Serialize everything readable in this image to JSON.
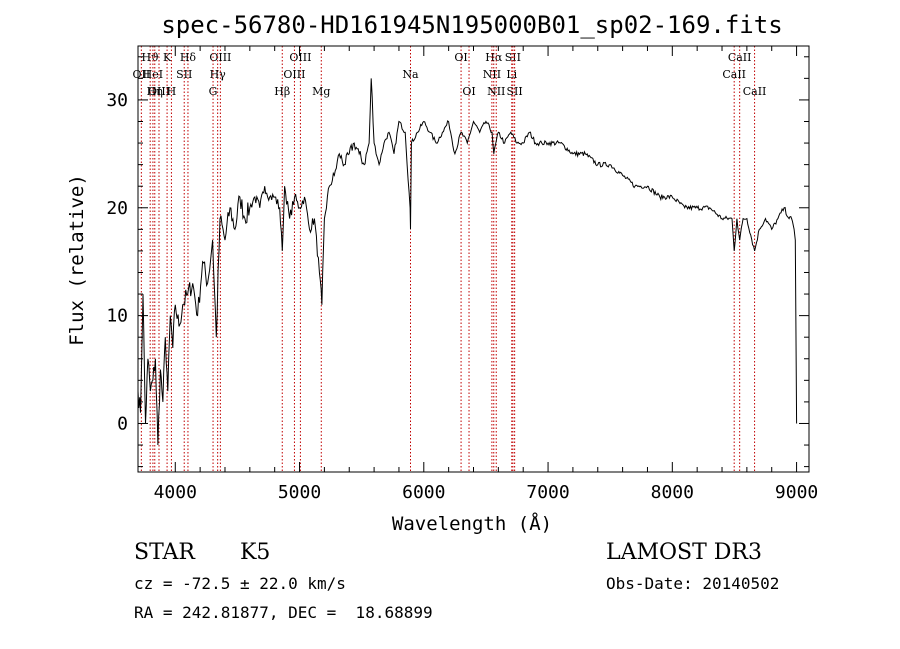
{
  "chart_data": {
    "type": "line",
    "title": "spec-56780-HD161945N195000B01_sp02-169.fits",
    "xlabel": "Wavelength (Å)",
    "ylabel": "Flux (relative)",
    "xlim": [
      3700,
      9100
    ],
    "ylim": [
      -4.5,
      35
    ],
    "xticks": [
      4000,
      5000,
      6000,
      7000,
      8000,
      9000
    ],
    "yticks": [
      0,
      10,
      20,
      30
    ],
    "grid": false,
    "series": [
      {
        "name": "spectrum",
        "x": [
          3700,
          3720,
          3740,
          3760,
          3780,
          3800,
          3820,
          3840,
          3860,
          3880,
          3900,
          3920,
          3940,
          3960,
          3980,
          4000,
          4030,
          4060,
          4100,
          4140,
          4180,
          4220,
          4260,
          4300,
          4330,
          4360,
          4400,
          4440,
          4480,
          4520,
          4560,
          4600,
          4640,
          4680,
          4720,
          4760,
          4800,
          4840,
          4861,
          4880,
          4920,
          4960,
          5000,
          5040,
          5080,
          5120,
          5160,
          5180,
          5200,
          5240,
          5280,
          5320,
          5360,
          5400,
          5440,
          5480,
          5520,
          5560,
          5577,
          5600,
          5640,
          5680,
          5720,
          5760,
          5800,
          5850,
          5890,
          5893,
          5900,
          5950,
          6000,
          6050,
          6100,
          6150,
          6200,
          6250,
          6300,
          6350,
          6400,
          6450,
          6500,
          6550,
          6563,
          6600,
          6650,
          6700,
          6750,
          6800,
          6850,
          6900,
          6950,
          7000,
          7100,
          7200,
          7300,
          7400,
          7500,
          7600,
          7700,
          7800,
          7900,
          8000,
          8100,
          8200,
          8300,
          8400,
          8480,
          8498,
          8520,
          8542,
          8570,
          8600,
          8662,
          8700,
          8750,
          8800,
          8850,
          8900,
          8940,
          8960,
          8980,
          8990,
          9000
        ],
        "values": [
          3,
          1,
          12,
          0,
          6,
          3,
          4,
          6,
          -2,
          5,
          2,
          8,
          3,
          10,
          7,
          11,
          9,
          11,
          12,
          13,
          10,
          15,
          13,
          17,
          8,
          19,
          17,
          20,
          18,
          21,
          19,
          20,
          21,
          20,
          22,
          21,
          21,
          20,
          16,
          22,
          19,
          21,
          20,
          21,
          18,
          19,
          14,
          11,
          19,
          22,
          23,
          25,
          24,
          25,
          26,
          25,
          24,
          26,
          32,
          26,
          24,
          26,
          27,
          25,
          28,
          27,
          20,
          18,
          26,
          27,
          28,
          27,
          26,
          27,
          28,
          25,
          27,
          26,
          28,
          27,
          28,
          27,
          25,
          27,
          26,
          27,
          26,
          26,
          27,
          26,
          26,
          26,
          26,
          25,
          25,
          24,
          24,
          23,
          22,
          22,
          21,
          21,
          20,
          20,
          20,
          19,
          19,
          16,
          19,
          17,
          19,
          19,
          16,
          18,
          19,
          18,
          19,
          20,
          19,
          19,
          18,
          17,
          0
        ]
      }
    ],
    "lines": [
      {
        "name": "Hϑ",
        "x": 3798,
        "row": 1
      },
      {
        "name": "OII",
        "x": 3727,
        "row": 2
      },
      {
        "name": "HeI",
        "x": 3820,
        "row": 2
      },
      {
        "name": "Hη",
        "x": 3835,
        "row": 3
      },
      {
        "name": "OIII",
        "x": 3869,
        "row": 3
      },
      {
        "name": "K",
        "x": 3934,
        "row": 1
      },
      {
        "name": "H",
        "x": 3969,
        "row": 3
      },
      {
        "name": "SII",
        "x": 4072,
        "row": 2
      },
      {
        "name": "Hδ",
        "x": 4102,
        "row": 1
      },
      {
        "name": "OIII",
        "x": 4363,
        "row": 1
      },
      {
        "name": "Hγ",
        "x": 4341,
        "row": 2
      },
      {
        "name": "G",
        "x": 4304,
        "row": 3
      },
      {
        "name": "Hβ",
        "x": 4861,
        "row": 3
      },
      {
        "name": "OIII",
        "x": 5007,
        "row": 1
      },
      {
        "name": "OIII",
        "x": 4959,
        "row": 2
      },
      {
        "name": "Mg",
        "x": 5175,
        "row": 3
      },
      {
        "name": "Na",
        "x": 5893,
        "row": 2
      },
      {
        "name": "OI",
        "x": 6300,
        "row": 1
      },
      {
        "name": "OI",
        "x": 6364,
        "row": 3
      },
      {
        "name": "Hα",
        "x": 6563,
        "row": 1
      },
      {
        "name": "NII",
        "x": 6548,
        "row": 2
      },
      {
        "name": "NII",
        "x": 6583,
        "row": 3
      },
      {
        "name": "SII",
        "x": 6717,
        "row": 1
      },
      {
        "name": "SII",
        "x": 6731,
        "row": 3
      },
      {
        "name": "Li",
        "x": 6708,
        "row": 2
      },
      {
        "name": "CaII",
        "x": 8542,
        "row": 1
      },
      {
        "name": "CaII",
        "x": 8498,
        "row": 2
      },
      {
        "name": "CaII",
        "x": 8662,
        "row": 3
      }
    ]
  },
  "info": {
    "class": "STAR",
    "subclass": "K5",
    "survey": "LAMOST DR3",
    "redshift": "cz = -72.5 ± 22.0 km/s",
    "obs_date": "Obs-Date: 20140502",
    "coords": "RA = 242.81877, DEC =  18.68899"
  }
}
